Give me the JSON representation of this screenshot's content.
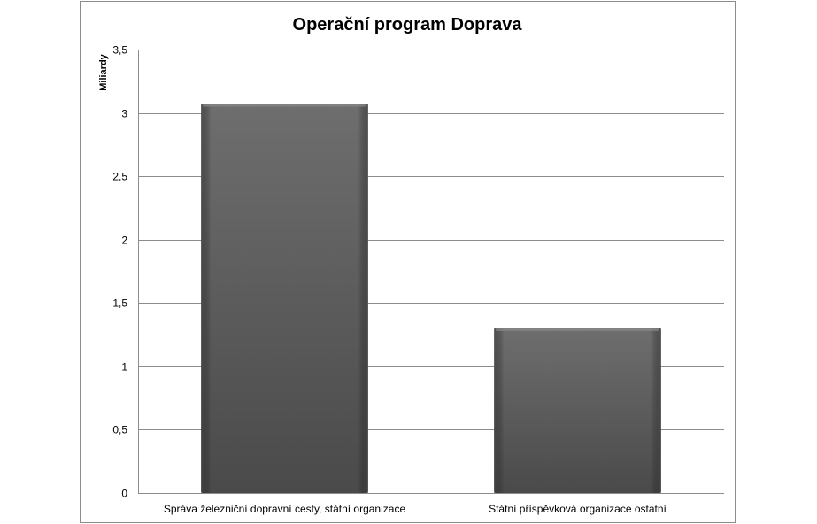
{
  "chart_data": {
    "type": "bar",
    "title": "Operační program Doprava",
    "ylabel": "Miliardy",
    "xlabel": "",
    "categories": [
      "Správa železniční dopravní cesty, státní organizace",
      "Státní příspěvková organizace ostatní"
    ],
    "values": [
      3.07,
      1.3
    ],
    "ylim": [
      0,
      3.5
    ],
    "yticks": [
      0,
      0.5,
      1,
      1.5,
      2,
      2.5,
      3,
      3.5
    ],
    "ytick_labels": [
      "0",
      "0,5",
      "1",
      "1,5",
      "2",
      "2,5",
      "3",
      "3,5"
    ],
    "grid": true,
    "legend": "none",
    "bar_color": "#5e5e5e",
    "grid_color": "#8c8c8c"
  }
}
